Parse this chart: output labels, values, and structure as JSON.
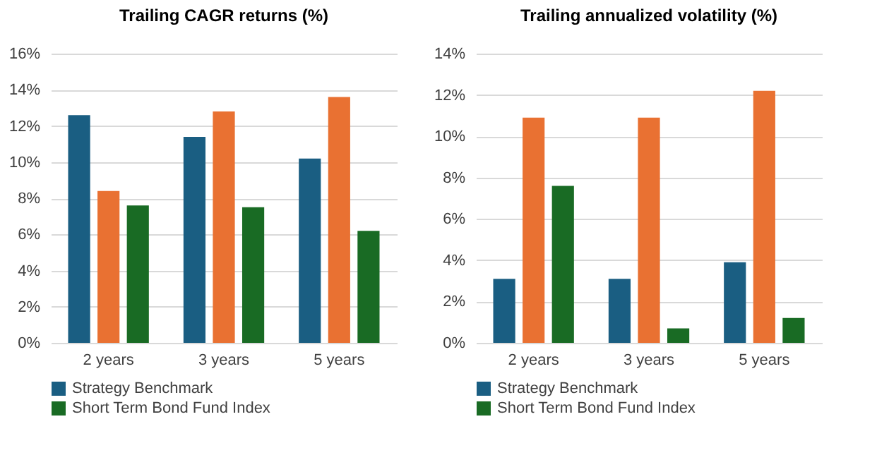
{
  "chart_data": [
    {
      "type": "bar",
      "title": "Trailing CAGR returns (%)",
      "categories": [
        "2 years",
        "3 years",
        "5 years"
      ],
      "series": [
        {
          "name": "Strategy Benchmark",
          "color": "#1a5e82",
          "values": [
            12.6,
            11.4,
            10.2
          ]
        },
        {
          "color": "#e97132",
          "values": [
            8.4,
            12.8,
            13.6
          ]
        },
        {
          "name": "Short Term Bond Fund Index",
          "color": "#196b24",
          "values": [
            7.6,
            7.5,
            6.2
          ]
        }
      ],
      "ylim": [
        0,
        16
      ],
      "yticks": [
        {
          "value": 0,
          "label": "0%"
        },
        {
          "value": 2,
          "label": "2%"
        },
        {
          "value": 4,
          "label": "4%"
        },
        {
          "value": 6,
          "label": "6%"
        },
        {
          "value": 8,
          "label": "8%"
        },
        {
          "value": 10,
          "label": "10%"
        },
        {
          "value": 12,
          "label": "12%"
        },
        {
          "value": 14,
          "label": "14%"
        },
        {
          "value": 16,
          "label": "16%"
        }
      ],
      "grid": "y",
      "legend": "bottom"
    },
    {
      "type": "bar",
      "title": "Trailing annualized volatility (%)",
      "categories": [
        "2 years",
        "3 years",
        "5 years"
      ],
      "series": [
        {
          "name": "Strategy Benchmark",
          "color": "#1a5e82",
          "values": [
            3.1,
            3.1,
            3.9
          ]
        },
        {
          "color": "#e97132",
          "values": [
            10.9,
            10.9,
            12.2
          ]
        },
        {
          "name": "Short Term Bond Fund Index",
          "color": "#196b24",
          "values": [
            7.6,
            0.7,
            1.2
          ]
        }
      ],
      "ylim": [
        0,
        14
      ],
      "yticks": [
        {
          "value": 0,
          "label": "0%"
        },
        {
          "value": 2,
          "label": "2%"
        },
        {
          "value": 4,
          "label": "4%"
        },
        {
          "value": 6,
          "label": "6%"
        },
        {
          "value": 8,
          "label": "8%"
        },
        {
          "value": 10,
          "label": "10%"
        },
        {
          "value": 12,
          "label": "12%"
        },
        {
          "value": 14,
          "label": "14%"
        }
      ],
      "grid": "y",
      "legend": "bottom"
    }
  ]
}
